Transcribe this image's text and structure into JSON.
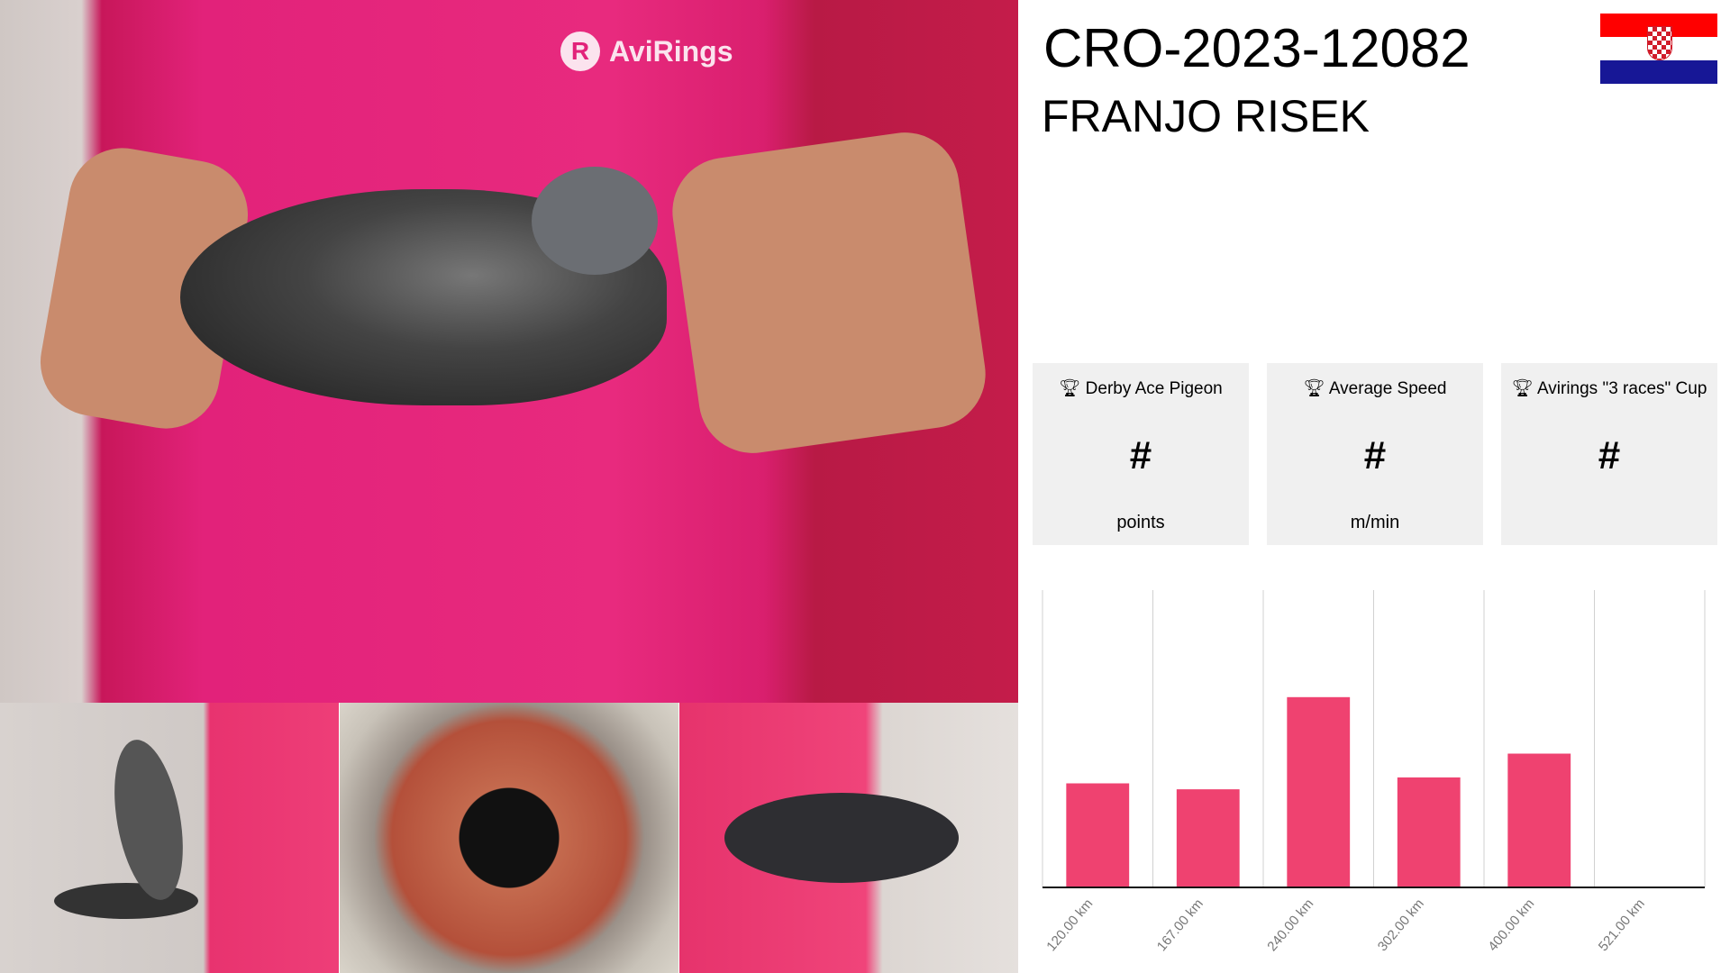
{
  "header": {
    "ring_number": "CRO-2023-12082",
    "owner": "FRANJO RISEK",
    "flag": "croatia-flag",
    "flag_colors": [
      "#ff0000",
      "#ffffff",
      "#171796"
    ]
  },
  "photos": {
    "brand_logo_text": "AviRings",
    "items": [
      "main-photo",
      "wing-photo",
      "eye-photo",
      "hold-photo"
    ]
  },
  "cards": [
    {
      "icon": "trophy-icon",
      "label": "Derby Ace Pigeon",
      "value": "#",
      "unit": "points"
    },
    {
      "icon": "trophy-icon",
      "label": "Average Speed",
      "value": "#",
      "unit": "m/min"
    },
    {
      "icon": "trophy-icon",
      "label": "Avirings \"3 races\" Cup",
      "value": "#",
      "unit": ""
    }
  ],
  "chart_data": {
    "type": "bar",
    "categories": [
      "120.00 km",
      "167.00 km",
      "240.00 km",
      "302.00 km",
      "400.00 km",
      "521.00 km"
    ],
    "values": [
      35,
      33,
      64,
      37,
      45,
      0
    ],
    "value_unit": "percent of plot height (no y-axis shown)",
    "ylim": [
      0,
      100
    ],
    "grid": "vertical",
    "bar_color": "#ef4270"
  }
}
